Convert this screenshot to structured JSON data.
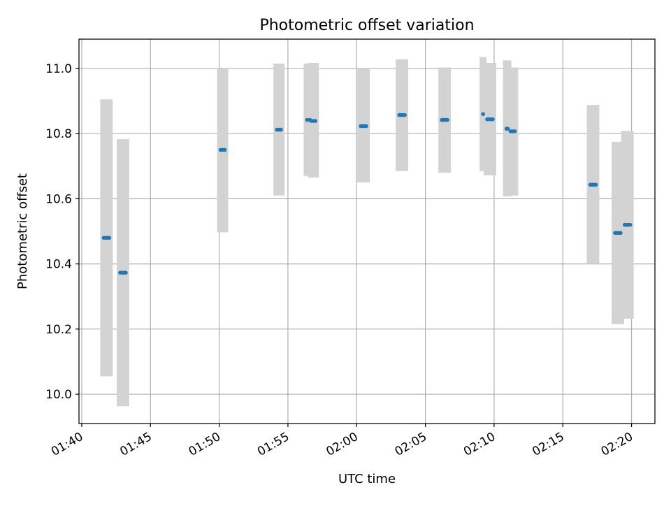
{
  "chart_data": {
    "type": "scatter",
    "title": "Photometric offset variation",
    "xlabel": "UTC time",
    "ylabel": "Photometric offset",
    "x_ticks": [
      "01:40",
      "01:45",
      "01:50",
      "01:55",
      "02:00",
      "02:05",
      "02:10",
      "02:15",
      "02:20"
    ],
    "y_ticks": [
      "10.0",
      "10.2",
      "10.4",
      "10.6",
      "10.8",
      "11.0"
    ],
    "xlim": [
      "01:39.8",
      "02:21.7"
    ],
    "ylim": [
      9.91,
      11.09
    ],
    "grid": true,
    "errorbar_color": "#d3d3d3",
    "point_color": "#1f77b4",
    "groups": [
      {
        "t_start": "01:41.6",
        "t_end": "01:42.0",
        "y": 10.48,
        "bar_low": 10.055,
        "bar_high": 10.905
      },
      {
        "t_start": "01:42.8",
        "t_end": "01:43.2",
        "y": 10.373,
        "bar_low": 9.963,
        "bar_high": 10.783
      },
      {
        "t_start": "01:50.1",
        "t_end": "01:50.4",
        "y": 10.75,
        "bar_low": 10.497,
        "bar_high": 11.0
      },
      {
        "t_start": "01:54.2",
        "t_end": "01:54.5",
        "y": 10.812,
        "bar_low": 10.61,
        "bar_high": 11.015
      },
      {
        "t_start": "01:56.4",
        "t_end": "01:56.6",
        "y": 10.842,
        "bar_low": 10.67,
        "bar_high": 11.015
      },
      {
        "t_start": "01:56.7",
        "t_end": "01:57.0",
        "y": 10.839,
        "bar_low": 10.665,
        "bar_high": 11.017
      },
      {
        "t_start": "02:00.3",
        "t_end": "02:00.7",
        "y": 10.823,
        "bar_low": 10.65,
        "bar_high": 11.0
      },
      {
        "t_start": "02:03.1",
        "t_end": "02:03.5",
        "y": 10.857,
        "bar_low": 10.685,
        "bar_high": 11.028
      },
      {
        "t_start": "02:06.2",
        "t_end": "02:06.6",
        "y": 10.842,
        "bar_low": 10.68,
        "bar_high": 11.003
      },
      {
        "t_start": "02:09.2",
        "t_end": "02:09.2",
        "y": 10.86,
        "bar_low": 10.685,
        "bar_high": 11.035
      },
      {
        "t_start": "02:09.5",
        "t_end": "02:09.9",
        "y": 10.844,
        "bar_low": 10.672,
        "bar_high": 11.017
      },
      {
        "t_start": "02:10.9",
        "t_end": "02:11.0",
        "y": 10.815,
        "bar_low": 10.607,
        "bar_high": 11.025
      },
      {
        "t_start": "02:11.2",
        "t_end": "02:11.5",
        "y": 10.807,
        "bar_low": 10.61,
        "bar_high": 11.003
      },
      {
        "t_start": "02:17.0",
        "t_end": "02:17.4",
        "y": 10.643,
        "bar_low": 10.4,
        "bar_high": 10.888
      },
      {
        "t_start": "02:18.8",
        "t_end": "02:19.2",
        "y": 10.495,
        "bar_low": 10.215,
        "bar_high": 10.775
      },
      {
        "t_start": "02:19.5",
        "t_end": "02:19.9",
        "y": 10.52,
        "bar_low": 10.232,
        "bar_high": 10.808
      }
    ]
  }
}
